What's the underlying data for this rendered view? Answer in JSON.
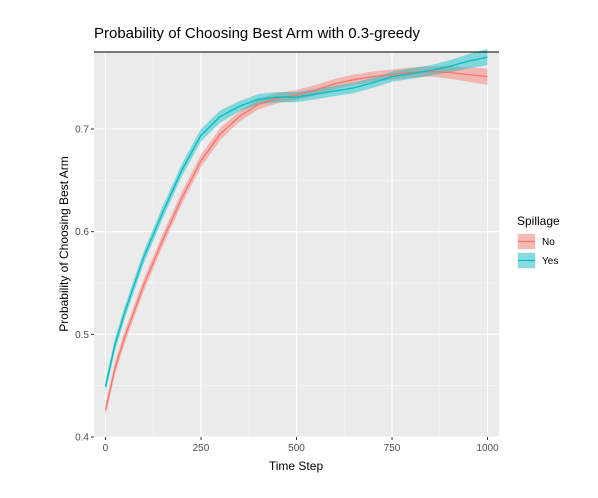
{
  "chart_data": {
    "type": "line",
    "title": "Probability of Choosing Best Arm with 0.3-greedy",
    "xlabel": "Time Step",
    "ylabel": "Probability of Choosing Best Arm",
    "xlim": [
      -30,
      1030
    ],
    "ylim": [
      0.4,
      0.775
    ],
    "xticks": [
      0,
      250,
      500,
      750,
      1000
    ],
    "xtick_labels": [
      "0",
      "250",
      "500",
      "750",
      "1000"
    ],
    "yticks": [
      0.4,
      0.5,
      0.6,
      0.7
    ],
    "ytick_labels": [
      "0.4",
      "0.5",
      "0.6",
      "0.7"
    ],
    "grid": true,
    "reference_line": 0.775,
    "legend": {
      "title": "Spillage",
      "position": "right"
    },
    "series": [
      {
        "name": "No",
        "color": "#F8766D",
        "fill": "#F8766D",
        "x": [
          0,
          25,
          50,
          100,
          150,
          200,
          250,
          300,
          350,
          400,
          450,
          500,
          550,
          600,
          650,
          700,
          750,
          800,
          850,
          900,
          950,
          1000
        ],
        "y": [
          0.426,
          0.467,
          0.497,
          0.548,
          0.592,
          0.633,
          0.669,
          0.695,
          0.712,
          0.724,
          0.73,
          0.733,
          0.738,
          0.744,
          0.748,
          0.751,
          0.753,
          0.755,
          0.756,
          0.755,
          0.753,
          0.751
        ],
        "band": [
          0.006,
          0.006,
          0.006,
          0.006,
          0.006,
          0.006,
          0.006,
          0.006,
          0.005,
          0.005,
          0.005,
          0.005,
          0.005,
          0.005,
          0.005,
          0.005,
          0.005,
          0.005,
          0.005,
          0.006,
          0.007,
          0.008
        ]
      },
      {
        "name": "Yes",
        "color": "#00BFC4",
        "fill": "#00BFC4",
        "x": [
          0,
          25,
          50,
          100,
          150,
          200,
          250,
          300,
          350,
          400,
          450,
          500,
          550,
          600,
          650,
          700,
          750,
          800,
          850,
          900,
          950,
          1000
        ],
        "y": [
          0.449,
          0.49,
          0.521,
          0.575,
          0.619,
          0.66,
          0.694,
          0.712,
          0.722,
          0.729,
          0.731,
          0.731,
          0.734,
          0.737,
          0.74,
          0.745,
          0.751,
          0.754,
          0.757,
          0.761,
          0.766,
          0.77
        ],
        "band": [
          0.006,
          0.006,
          0.006,
          0.006,
          0.006,
          0.006,
          0.006,
          0.006,
          0.005,
          0.005,
          0.005,
          0.005,
          0.005,
          0.005,
          0.005,
          0.005,
          0.005,
          0.005,
          0.005,
          0.006,
          0.007,
          0.008
        ]
      }
    ]
  }
}
